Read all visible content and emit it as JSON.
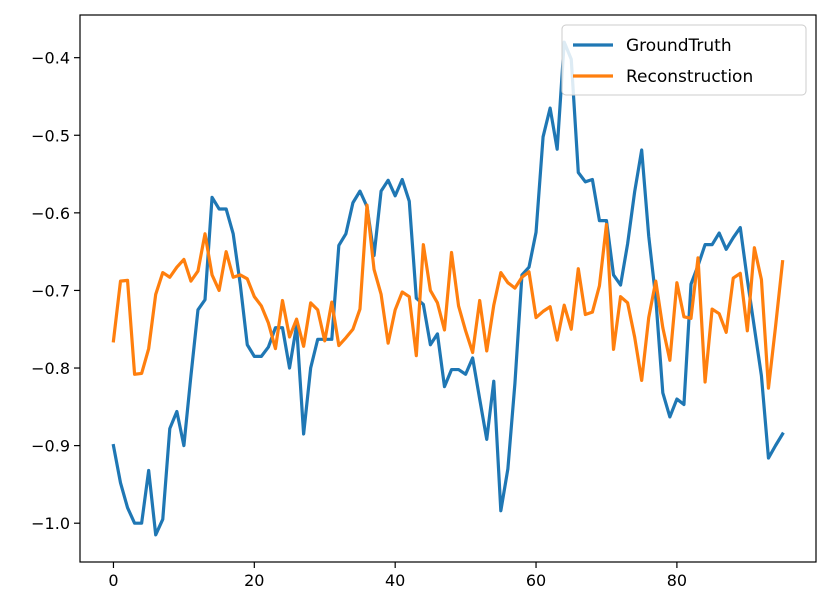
{
  "chart_data": {
    "type": "line",
    "title": "",
    "xlabel": "",
    "ylabel": "",
    "xlim": [
      -4.75,
      99.75
    ],
    "ylim": [
      -1.05,
      -0.345
    ],
    "xticks": [
      0,
      20,
      40,
      60,
      80
    ],
    "yticks": [
      -1.0,
      -0.9,
      -0.8,
      -0.7,
      -0.6,
      -0.5,
      -0.4
    ],
    "grid": false,
    "legend_position": "upper right",
    "x": [
      0,
      1,
      2,
      3,
      4,
      5,
      6,
      7,
      8,
      9,
      10,
      11,
      12,
      13,
      14,
      15,
      16,
      17,
      18,
      19,
      20,
      21,
      22,
      23,
      24,
      25,
      26,
      27,
      28,
      29,
      30,
      31,
      32,
      33,
      34,
      35,
      36,
      37,
      38,
      39,
      40,
      41,
      42,
      43,
      44,
      45,
      46,
      47,
      48,
      49,
      50,
      51,
      52,
      53,
      54,
      55,
      56,
      57,
      58,
      59,
      60,
      61,
      62,
      63,
      64,
      65,
      66,
      67,
      68,
      69,
      70,
      71,
      72,
      73,
      74,
      75,
      76,
      77,
      78,
      79,
      80,
      81,
      82,
      83,
      84,
      85,
      86,
      87,
      88,
      89,
      90,
      91,
      92,
      93,
      94,
      95
    ],
    "series": [
      {
        "name": "GroundTruth",
        "color": "#1f77b4",
        "values": [
          -0.9,
          -0.948,
          -0.98,
          -1.0,
          -1.0,
          -0.932,
          -1.015,
          -0.995,
          -0.878,
          -0.856,
          -0.9,
          -0.81,
          -0.725,
          -0.712,
          -0.58,
          -0.595,
          -0.595,
          -0.627,
          -0.692,
          -0.77,
          -0.785,
          -0.785,
          -0.773,
          -0.748,
          -0.748,
          -0.8,
          -0.745,
          -0.885,
          -0.8,
          -0.763,
          -0.763,
          -0.763,
          -0.642,
          -0.627,
          -0.587,
          -0.572,
          -0.592,
          -0.655,
          -0.572,
          -0.558,
          -0.578,
          -0.557,
          -0.585,
          -0.71,
          -0.718,
          -0.77,
          -0.756,
          -0.824,
          -0.802,
          -0.802,
          -0.808,
          -0.787,
          -0.84,
          -0.892,
          -0.817,
          -0.984,
          -0.93,
          -0.82,
          -0.68,
          -0.67,
          -0.625,
          -0.502,
          -0.465,
          -0.518,
          -0.38,
          -0.402,
          -0.548,
          -0.56,
          -0.557,
          -0.61,
          -0.61,
          -0.68,
          -0.693,
          -0.64,
          -0.573,
          -0.519,
          -0.63,
          -0.71,
          -0.832,
          -0.863,
          -0.84,
          -0.847,
          -0.692,
          -0.668,
          -0.641,
          -0.641,
          -0.626,
          -0.647,
          -0.632,
          -0.619,
          -0.686,
          -0.748,
          -0.81,
          -0.916,
          -0.9,
          -0.885
        ]
      },
      {
        "name": "Reconstruction",
        "color": "#ff7f0e",
        "values": [
          -0.765,
          -0.688,
          -0.687,
          -0.808,
          -0.807,
          -0.775,
          -0.705,
          -0.677,
          -0.683,
          -0.67,
          -0.66,
          -0.688,
          -0.675,
          -0.627,
          -0.68,
          -0.7,
          -0.65,
          -0.683,
          -0.68,
          -0.685,
          -0.708,
          -0.72,
          -0.742,
          -0.775,
          -0.713,
          -0.76,
          -0.737,
          -0.772,
          -0.716,
          -0.725,
          -0.765,
          -0.715,
          -0.771,
          -0.761,
          -0.75,
          -0.724,
          -0.59,
          -0.673,
          -0.705,
          -0.768,
          -0.725,
          -0.702,
          -0.708,
          -0.784,
          -0.641,
          -0.7,
          -0.716,
          -0.751,
          -0.651,
          -0.72,
          -0.752,
          -0.78,
          -0.713,
          -0.778,
          -0.719,
          -0.677,
          -0.69,
          -0.697,
          -0.683,
          -0.676,
          -0.735,
          -0.727,
          -0.721,
          -0.764,
          -0.719,
          -0.75,
          -0.672,
          -0.731,
          -0.728,
          -0.694,
          -0.615,
          -0.776,
          -0.708,
          -0.716,
          -0.76,
          -0.816,
          -0.735,
          -0.688,
          -0.748,
          -0.79,
          -0.69,
          -0.734,
          -0.736,
          -0.658,
          -0.818,
          -0.724,
          -0.73,
          -0.754,
          -0.684,
          -0.678,
          -0.752,
          -0.645,
          -0.686,
          -0.826,
          -0.747,
          -0.663
        ]
      }
    ]
  }
}
